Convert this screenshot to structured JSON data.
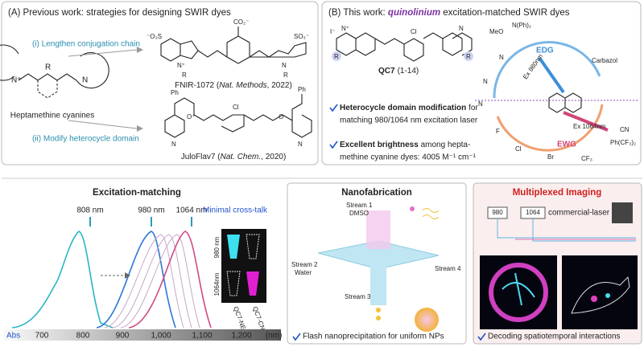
{
  "panel_a": {
    "title": "(A) Previous work: strategies for designing SWIR dyes",
    "route_1": "(i) Lengthen conjugation chain",
    "route_2": "(ii) Modify heterocycle domain",
    "scaffold": "Heptamethine cyanines",
    "scaffold_atoms": [
      "N⁺",
      "N",
      "R"
    ],
    "dye_1": {
      "name": "FNIR-1072 (",
      "journal": "Nat. Methods",
      "year": ", 2022)",
      "atoms": [
        "⁻O₃S",
        "N⁺",
        "R",
        "N",
        "R",
        "CO₂⁻",
        "SO₃⁻"
      ]
    },
    "dye_2": {
      "name": "JuloFlav7 (",
      "journal": "Nat. Chem.",
      "year": ", 2020)",
      "atoms": [
        "Ph",
        "O⁺",
        "Cl",
        "O",
        "Ph",
        "N",
        "N"
      ]
    }
  },
  "panel_b": {
    "title_start": "(B) This work: ",
    "title_highlight": "quinolinium",
    "title_end": " excitation-matched SWIR dyes",
    "compound": "QC7",
    "compound_range": "(1-14)",
    "compound_atoms": [
      "N⁺",
      "I⁻",
      "Cl",
      "N",
      "R",
      "R"
    ],
    "bullet_1": {
      "bold": "Heterocycle domain modification",
      "rest": " for",
      "line_2": "matching 980/1064 nm excitation laser"
    },
    "bullet_2": {
      "bold": "Excellent brightness",
      "rest": " among hepta-",
      "line_2": "methine cyanine dyes: 4005 M⁻¹ cm⁻¹"
    },
    "edg": "EDG",
    "ewg": "EWG",
    "ex_1": "Ex 980nm",
    "ex_2": "Ex 1064nm",
    "edg_groups": [
      "MeO",
      "N(Ph)₂",
      "Carbazol",
      "N",
      "N",
      "N"
    ],
    "ewg_groups": [
      "CN",
      "Ph(CF₃)₂",
      "CF₃",
      "Br",
      "Cl",
      "F"
    ]
  },
  "excitation": {
    "title": "Excitation-matching",
    "laser_1": "808 nm",
    "laser_2": "980 nm",
    "laser_3": "1064 nm",
    "note": "Minimal cross-talk",
    "axis_label": "Abs",
    "ticks": [
      "700",
      "800",
      "900",
      "1,000",
      "1,100",
      "1,200",
      "(nm)"
    ],
    "inset_rows": [
      "980 nm",
      "1064nm"
    ],
    "inset_cols": [
      "QC7-NEt₃",
      "QC7-CN"
    ]
  },
  "nanofabrication": {
    "title": "Nanofabrication",
    "stream_1": "Stream 1",
    "solvent_1": "DMSO",
    "stream_2": "Stream 2",
    "solvent_2": "Water",
    "stream_3": "Stream 3",
    "stream_4": "Stream 4",
    "caption": "Flash nanoprecipitation for uniform NPs"
  },
  "imaging": {
    "title": "Multiplexed Imaging",
    "laser_1": "980",
    "laser_2": "1064",
    "laser_note": "commercial-laser",
    "caption": "Decoding spatiotemporal interactions"
  }
}
